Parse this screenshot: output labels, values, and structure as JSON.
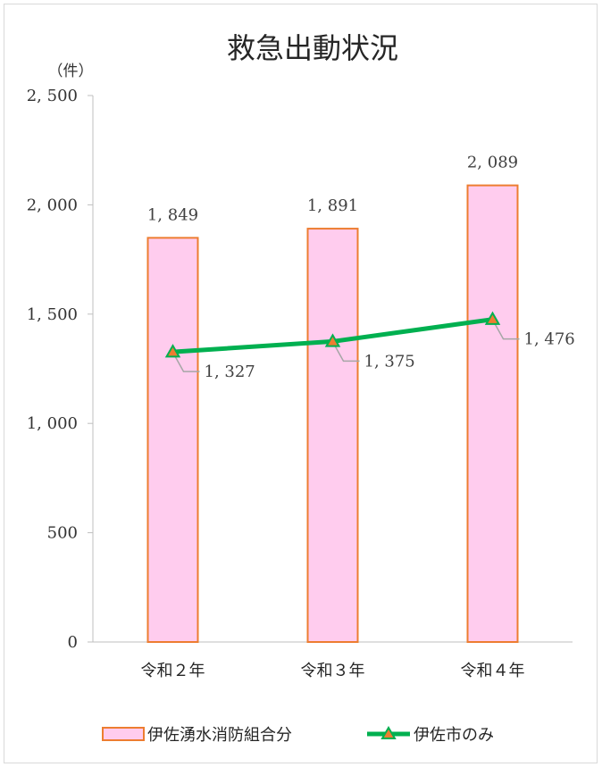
{
  "chart_data": {
    "type": "bar",
    "title": "救急出動状況",
    "unit_label": "（件）",
    "categories": [
      "令和２年",
      "令和３年",
      "令和４年"
    ],
    "ylim": [
      0,
      2500
    ],
    "yticks": [
      0,
      500,
      1000,
      1500,
      2000,
      2500
    ],
    "ytick_labels": [
      "0",
      "500",
      "1, 000",
      "1, 500",
      "2, 000",
      "2, 500"
    ],
    "grid": false,
    "legend_position": "bottom",
    "series": [
      {
        "name": "伊佐湧水消防組合分",
        "type": "bar",
        "values": [
          1849,
          1891,
          2089
        ],
        "labels": [
          "1, 849",
          "1, 891",
          "2, 089"
        ],
        "fill": "#ffccee",
        "stroke": "#ed7d31"
      },
      {
        "name": "伊佐市のみ",
        "type": "line",
        "values": [
          1327,
          1375,
          1476
        ],
        "labels": [
          "1, 327",
          "1, 375",
          "1, 476"
        ],
        "color": "#00b050",
        "marker_fill": "#ed7d31",
        "marker_stroke": "#00b050"
      }
    ]
  }
}
